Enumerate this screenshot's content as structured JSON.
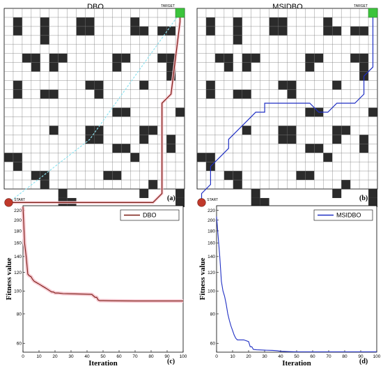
{
  "panels": {
    "a": {
      "title": "DBO",
      "label": "(a)",
      "start_label": "START",
      "target_label": "TARGET"
    },
    "b": {
      "title": "MSIDBO",
      "label": "(b)",
      "start_label": "START",
      "target_label": "TARGET"
    },
    "c": {
      "label": "(c)"
    },
    "d": {
      "label": "(d)"
    }
  },
  "grid_map": {
    "size": 20,
    "obstacles": [
      [
        1,
        1
      ],
      [
        1,
        2
      ],
      [
        4,
        1
      ],
      [
        4,
        2
      ],
      [
        4,
        3
      ],
      [
        8,
        2
      ],
      [
        9,
        2
      ],
      [
        14,
        2
      ],
      [
        15,
        2
      ],
      [
        17,
        2
      ],
      [
        18,
        2
      ],
      [
        8,
        1
      ],
      [
        9,
        1
      ],
      [
        14,
        1
      ],
      [
        2,
        5
      ],
      [
        3,
        5
      ],
      [
        3,
        6
      ],
      [
        5,
        5
      ],
      [
        5,
        6
      ],
      [
        6,
        5
      ],
      [
        12,
        5
      ],
      [
        13,
        5
      ],
      [
        12,
        6
      ],
      [
        17,
        5
      ],
      [
        18,
        5
      ],
      [
        18,
        6
      ],
      [
        18,
        7
      ],
      [
        1,
        8
      ],
      [
        1,
        9
      ],
      [
        4,
        9
      ],
      [
        5,
        9
      ],
      [
        9,
        8
      ],
      [
        10,
        8
      ],
      [
        10,
        9
      ],
      [
        15,
        8
      ],
      [
        12,
        11
      ],
      [
        13,
        11
      ],
      [
        19,
        11
      ],
      [
        5,
        13
      ],
      [
        9,
        13
      ],
      [
        9,
        14
      ],
      [
        10,
        13
      ],
      [
        10,
        14
      ],
      [
        15,
        13
      ],
      [
        15,
        14
      ],
      [
        16,
        13
      ],
      [
        18,
        14
      ],
      [
        18,
        15
      ],
      [
        0,
        16
      ],
      [
        1,
        16
      ],
      [
        1,
        17
      ],
      [
        12,
        15
      ],
      [
        13,
        15
      ],
      [
        14,
        16
      ],
      [
        3,
        18
      ],
      [
        4,
        18
      ],
      [
        4,
        19
      ],
      [
        11,
        18
      ],
      [
        12,
        18
      ],
      [
        16,
        19
      ],
      [
        6,
        20
      ],
      [
        6,
        21
      ],
      [
        7,
        21
      ],
      [
        15,
        20
      ],
      [
        19,
        20
      ],
      [
        19,
        21
      ]
    ],
    "dbo_path": [
      [
        0,
        21
      ],
      [
        16,
        21
      ],
      [
        17,
        20
      ],
      [
        17,
        10
      ],
      [
        18,
        9
      ],
      [
        19,
        1
      ],
      [
        19,
        0
      ]
    ],
    "dbo_alt_path": [
      [
        0,
        21
      ],
      [
        9,
        14
      ],
      [
        19,
        0
      ]
    ],
    "msidbo_path": [
      [
        0,
        21
      ],
      [
        0,
        20
      ],
      [
        1,
        19
      ],
      [
        1,
        17
      ],
      [
        2,
        16
      ],
      [
        3,
        15
      ],
      [
        3,
        14
      ],
      [
        4,
        13
      ],
      [
        5,
        12
      ],
      [
        6,
        11
      ],
      [
        7,
        11
      ],
      [
        7,
        10
      ],
      [
        12,
        10
      ],
      [
        13,
        11
      ],
      [
        14,
        11
      ],
      [
        15,
        10
      ],
      [
        17,
        10
      ],
      [
        18,
        9
      ],
      [
        18,
        7
      ],
      [
        19,
        6
      ],
      [
        19,
        0
      ]
    ]
  },
  "chart_data": [
    {
      "type": "line",
      "xlabel": "Iteration",
      "ylabel": "Fitness value",
      "xlim": [
        0,
        100
      ],
      "ylim": [
        55,
        230
      ],
      "yscale": "log",
      "xticks": [
        "0",
        "10",
        "20",
        "30",
        "40",
        "50",
        "60",
        "70",
        "80",
        "90",
        "100"
      ],
      "yticks": [
        "60",
        "80",
        "100",
        "120",
        "140",
        "160",
        "180",
        "200",
        "220"
      ],
      "legend_position": "top-right",
      "series": [
        {
          "name": "DBO",
          "color": "#7a1a12",
          "band_color": "#f6c9d2",
          "x": [
            0,
            1,
            2,
            3,
            4,
            5,
            6,
            7,
            8,
            9,
            10,
            11,
            12,
            13,
            14,
            15,
            16,
            17,
            18,
            19,
            20,
            22,
            25,
            30,
            35,
            40,
            43,
            45,
            46,
            47,
            48,
            50,
            55,
            60,
            70,
            80,
            90,
            100
          ],
          "values": [
            228,
            160,
            140,
            118,
            116,
            115,
            112,
            110,
            109,
            108,
            107,
            106,
            105,
            104,
            103,
            102,
            101,
            100,
            99,
            99,
            98,
            98,
            97.5,
            97.3,
            97.1,
            96.9,
            96.7,
            94,
            94,
            91.5,
            91,
            91,
            90.9,
            90.8,
            90.7,
            90.7,
            90.7,
            90.7
          ]
        },
        {
          "name": "MSIDBO",
          "color": "#1f2fc4",
          "x": [
            0,
            1,
            2,
            3,
            4,
            5,
            6,
            7,
            8,
            9,
            10,
            11,
            12,
            13,
            15,
            17,
            20,
            21,
            22,
            23,
            25,
            30,
            35,
            38,
            40,
            45,
            50,
            60,
            70,
            80,
            90,
            100
          ],
          "values": [
            207,
            170,
            140,
            110,
            100,
            95,
            88,
            80,
            75,
            71,
            68,
            65,
            63,
            62,
            62,
            62,
            61,
            58,
            58,
            56.5,
            56.3,
            56.1,
            56,
            55.8,
            55.5,
            55.3,
            55.2,
            55.2,
            55.2,
            55.2,
            55.2,
            55.2
          ]
        }
      ]
    }
  ]
}
